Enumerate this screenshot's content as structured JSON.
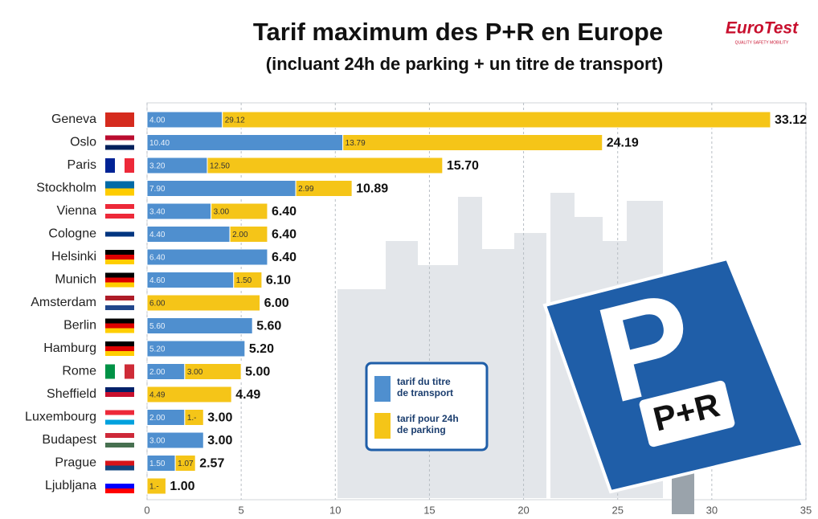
{
  "chart_data": {
    "type": "stacked-bar",
    "orientation": "horizontal",
    "title": "Tarif maximum des P+R en Europe",
    "subtitle": "(incluant 24h de parking + un titre de transport)",
    "categories": [
      "Geneva",
      "Oslo",
      "Paris",
      "Stockholm",
      "Vienna",
      "Cologne",
      "Helsinki",
      "Munich",
      "Amsterdam",
      "Berlin",
      "Hamburg",
      "Rome",
      "Sheffield",
      "Luxembourg",
      "Budapest",
      "Prague",
      "Ljubljana"
    ],
    "series": [
      {
        "name": "tarif du titre de transport",
        "color": "#4f8fcf",
        "values": [
          4.0,
          10.4,
          3.2,
          7.9,
          3.4,
          4.4,
          6.4,
          4.6,
          null,
          5.6,
          5.2,
          2.0,
          null,
          2.0,
          3.0,
          1.5,
          null
        ],
        "value_labels": [
          "4.00",
          "10.40",
          "3.20",
          "7.90",
          "3.40",
          "4.40",
          "6.40",
          "4.60",
          null,
          "5.60",
          "5.20",
          "2.00",
          null,
          "2.00",
          "3.00",
          "1.50",
          null
        ]
      },
      {
        "name": "tarif pour 24h de parking",
        "color": "#f5c518",
        "values": [
          29.12,
          13.79,
          12.5,
          2.99,
          3.0,
          2.0,
          null,
          1.5,
          6.0,
          null,
          null,
          3.0,
          4.49,
          1.0,
          null,
          1.07,
          1.0
        ],
        "value_labels": [
          "29.12",
          "13.79",
          "12.50",
          "2.99",
          "3.00",
          "2.00",
          null,
          "1.50",
          "6.00",
          null,
          null,
          "3.00",
          "4.49",
          "1.-",
          null,
          "1.07",
          "1.-"
        ]
      }
    ],
    "totals": [
      33.12,
      24.19,
      15.7,
      10.89,
      6.4,
      6.4,
      6.4,
      6.1,
      6.0,
      5.6,
      5.2,
      5.0,
      4.49,
      3.0,
      3.0,
      2.57,
      1.0
    ],
    "total_labels": [
      "33.12",
      "24.19",
      "15.70",
      "10.89",
      "6.40",
      "6.40",
      "6.40",
      "6.10",
      "6.00",
      "5.60",
      "5.20",
      "5.00",
      "4.49",
      "3.00",
      "3.00",
      "2.57",
      "1.00"
    ],
    "xlim": [
      0,
      35
    ],
    "xticks": [
      0,
      5,
      10,
      15,
      20,
      25,
      30,
      35
    ],
    "grid": true
  },
  "logo": {
    "name": "EuroTest",
    "tagline": "QUALITY SAFETY MOBILITY"
  },
  "sign": {
    "letter": "P",
    "label": "P+R"
  }
}
